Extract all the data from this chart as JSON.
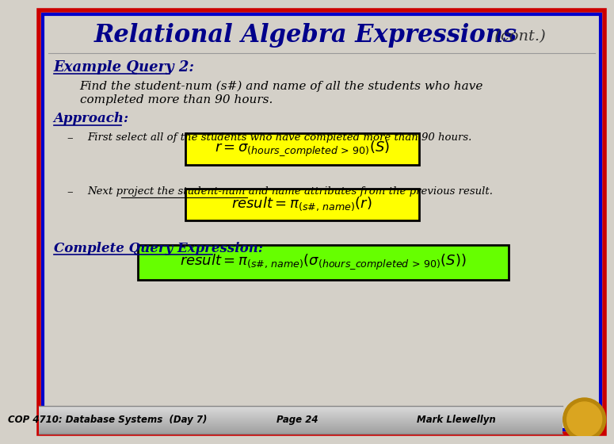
{
  "title_main": "Relational Algebra Expressions",
  "title_cont": " (cont.)",
  "bg_color": "#d4d0c8",
  "border_outer_color": "#cc0000",
  "border_inner_color": "#0000cc",
  "title_color": "#00008B",
  "example_query_text": "Example Query 2:",
  "find_text_line1": "Find the student-num (s#) and name of all the students who have",
  "find_text_line2": "completed more than 90 hours.",
  "approach_text": "Approach:",
  "bullet1_text": "First select all of the students who have completed more than 90 hours.",
  "bullet2_text": "Next project the student-num and name attributes from the previous result.",
  "formula1_bg": "#ffff00",
  "formula2_bg": "#ffff00",
  "formula3_bg": "#66ff00",
  "complete_text": "Complete Query Expression:",
  "footer_text1": "COP 4710: Database Systems  (Day 7)",
  "footer_text2": "Page 24",
  "footer_text3": "Mark Llewellyn",
  "footer_color": "#000000"
}
